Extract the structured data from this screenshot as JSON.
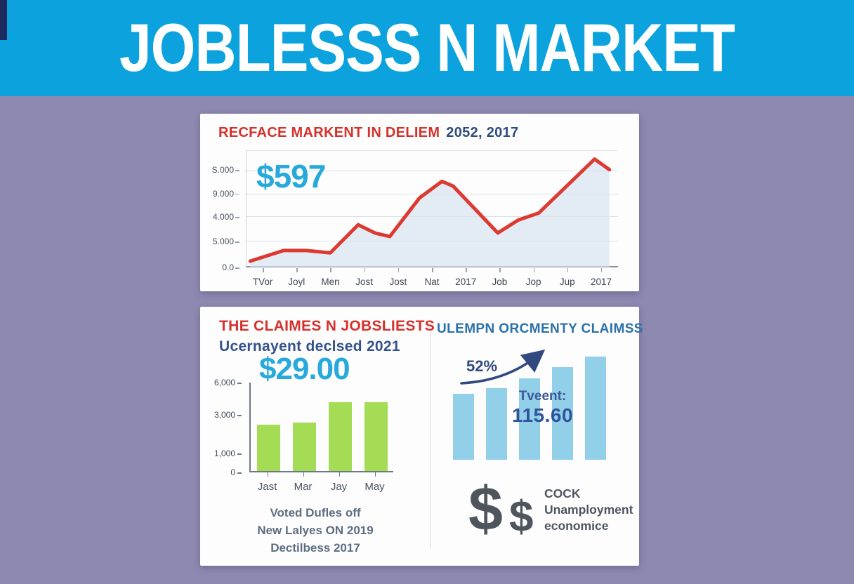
{
  "header": {
    "title": "JOBLESSS N MARKET"
  },
  "colors": {
    "header_bg": "#0ba2dd",
    "background": "#8e89b0",
    "card_bg": "#fdfdfe",
    "accent_red": "#d5312b",
    "accent_navy": "#2e4d7f",
    "accent_cyan": "#27a9dc",
    "steel_blue_title": "#2a70a9",
    "line_red": "#dc3a31",
    "green_bar": "#a4dd55",
    "blue_bar": "#92d0ea",
    "caption_gray": "#5d6e80",
    "dollar_gray": "#4e555d"
  },
  "card1": {
    "title_red": "RECFACE MARKENT IN DELIEM",
    "title_suffix": "2052, 2017",
    "big_value": "$597"
  },
  "card2": {
    "left": {
      "title": "THE CLAIMES N JOBSLIESTS",
      "subtitle": "Ucernayent declsed 2021",
      "big_value": "$29.00",
      "caption_lines": [
        "Voted Dufles off",
        "New Lalyes ON 2019",
        "Dectilbess 2017"
      ]
    },
    "right": {
      "title": "ULEMPN ORCMENTY CLAIMSS",
      "growth_label": "52%",
      "overlay_label": "Tveent:",
      "overlay_value": "115.60",
      "dollar_large": "$",
      "dollar_small": "$",
      "info_lines": [
        "COCK",
        "Unamployment",
        "economice"
      ]
    }
  },
  "chart_data": [
    {
      "id": "market-line",
      "type": "line",
      "title": "RECFACE MARKENT IN DELIEM 2052, 2017",
      "callout_value": "$597",
      "legend_position": "none",
      "grid": true,
      "line_color": "#dc3a31",
      "area_fill": "rgba(214,227,240,0.65)",
      "y_axis_ticks": [
        {
          "label": "S.000",
          "pos": 0.17
        },
        {
          "label": "9.000",
          "pos": 0.37
        },
        {
          "label": "4.000",
          "pos": 0.57
        },
        {
          "label": "5.000",
          "pos": 0.78
        },
        {
          "label": "0.0",
          "pos": 1.0
        }
      ],
      "x_ticks": [
        "TVor",
        "Joyl",
        "Men",
        "Jost",
        "Jost",
        "Nat",
        "2017",
        "Job",
        "Jop",
        "Jup",
        "2017"
      ],
      "points": [
        [
          0.01,
          0.06
        ],
        [
          0.1,
          0.15
        ],
        [
          0.16,
          0.15
        ],
        [
          0.225,
          0.13
        ],
        [
          0.3,
          0.37
        ],
        [
          0.345,
          0.3
        ],
        [
          0.385,
          0.27
        ],
        [
          0.465,
          0.6
        ],
        [
          0.525,
          0.74
        ],
        [
          0.555,
          0.7
        ],
        [
          0.675,
          0.3
        ],
        [
          0.73,
          0.41
        ],
        [
          0.785,
          0.47
        ],
        [
          0.935,
          0.93
        ],
        [
          0.975,
          0.84
        ]
      ],
      "points_note": "x,y as fractions of plot area (y up from baseline); source axis labels are garbled/non-numeric"
    },
    {
      "id": "claims-bars",
      "type": "bar",
      "categories": [
        "Jast",
        "Mar",
        "Jay",
        "May"
      ],
      "values_fraction": [
        0.52,
        0.55,
        0.78,
        0.78
      ],
      "approx_values": [
        2600,
        2750,
        3900,
        3900
      ],
      "y_axis_ticks": [
        {
          "label": "6,000",
          "pos": 0.0
        },
        {
          "label": "3,000",
          "pos": 0.36
        },
        {
          "label": "1,000",
          "pos": 0.79
        },
        {
          "label": "0",
          "pos": 1.0
        }
      ],
      "bar_color": "#a4dd55",
      "ylim_top_label": "6,000"
    },
    {
      "id": "unemployment-bars",
      "type": "bar",
      "categories": [
        "",
        "",
        "",
        "",
        ""
      ],
      "values_fraction": [
        0.62,
        0.67,
        0.76,
        0.87,
        0.97
      ],
      "bar_color": "#92d0ea",
      "annotation": "52%",
      "overlay_label": "Tveent:",
      "overlay_value": "115.60",
      "trend": "rising"
    }
  ]
}
